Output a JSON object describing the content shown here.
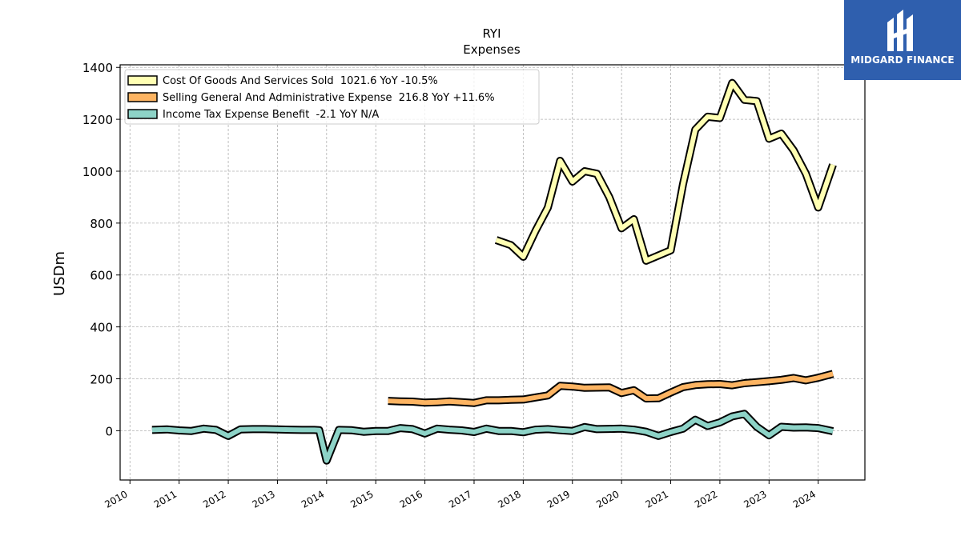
{
  "chart_data": {
    "type": "line",
    "title": "RYI",
    "subtitle": "Expenses",
    "ylabel": "USDm",
    "xlabel": "",
    "ylim": [
      -190,
      1410
    ],
    "xlim": [
      2009.8,
      2024.95
    ],
    "yticks": [
      0,
      200,
      400,
      600,
      800,
      1000,
      1200,
      1400
    ],
    "xticks": [
      2010,
      2011,
      2012,
      2013,
      2014,
      2015,
      2016,
      2017,
      2018,
      2019,
      2020,
      2021,
      2022,
      2023,
      2024
    ],
    "grid": true,
    "legend_position": "top-left",
    "series": [
      {
        "name": "Cost Of Goods And Services Sold",
        "legend": "Cost Of Goods And Services Sold  1021.6 YoY -10.5%",
        "color": "#ffffb3",
        "points": [
          [
            2017.45,
            735
          ],
          [
            2017.75,
            715
          ],
          [
            2018.0,
            670
          ],
          [
            2018.25,
            770
          ],
          [
            2018.5,
            860
          ],
          [
            2018.75,
            1040
          ],
          [
            2019.0,
            960
          ],
          [
            2019.25,
            1000
          ],
          [
            2019.5,
            990
          ],
          [
            2019.75,
            900
          ],
          [
            2020.0,
            780
          ],
          [
            2020.25,
            815
          ],
          [
            2020.5,
            655
          ],
          [
            2020.75,
            675
          ],
          [
            2021.0,
            695
          ],
          [
            2021.25,
            950
          ],
          [
            2021.5,
            1160
          ],
          [
            2021.75,
            1210
          ],
          [
            2022.0,
            1205
          ],
          [
            2022.25,
            1340
          ],
          [
            2022.5,
            1275
          ],
          [
            2022.75,
            1270
          ],
          [
            2023.0,
            1125
          ],
          [
            2023.25,
            1145
          ],
          [
            2023.5,
            1080
          ],
          [
            2023.75,
            990
          ],
          [
            2024.0,
            860
          ],
          [
            2024.3,
            1025
          ]
        ]
      },
      {
        "name": "Selling General And Administrative Expense",
        "legend": "Selling General And Administrative Expense  216.8 YoY +11.6%",
        "color": "#fdb462",
        "points": [
          [
            2015.25,
            115
          ],
          [
            2015.5,
            113
          ],
          [
            2015.75,
            112
          ],
          [
            2016.0,
            108
          ],
          [
            2016.25,
            110
          ],
          [
            2016.5,
            113
          ],
          [
            2016.75,
            110
          ],
          [
            2017.0,
            107
          ],
          [
            2017.25,
            117
          ],
          [
            2017.5,
            117
          ],
          [
            2017.75,
            119
          ],
          [
            2018.0,
            120
          ],
          [
            2018.25,
            128
          ],
          [
            2018.5,
            136
          ],
          [
            2018.75,
            173
          ],
          [
            2019.0,
            170
          ],
          [
            2019.25,
            165
          ],
          [
            2019.5,
            166
          ],
          [
            2019.75,
            167
          ],
          [
            2020.0,
            145
          ],
          [
            2020.25,
            156
          ],
          [
            2020.5,
            124
          ],
          [
            2020.75,
            125
          ],
          [
            2021.0,
            147
          ],
          [
            2021.25,
            168
          ],
          [
            2021.5,
            176
          ],
          [
            2021.75,
            179
          ],
          [
            2022.0,
            180
          ],
          [
            2022.25,
            175
          ],
          [
            2022.5,
            183
          ],
          [
            2022.75,
            187
          ],
          [
            2023.0,
            191
          ],
          [
            2023.25,
            196
          ],
          [
            2023.5,
            203
          ],
          [
            2023.75,
            194
          ],
          [
            2024.0,
            204
          ],
          [
            2024.3,
            219
          ]
        ]
      },
      {
        "name": "Income Tax Expense Benefit",
        "legend": "Income Tax Expense Benefit  -2.1 YoY N/A",
        "color": "#8dd3c7",
        "points": [
          [
            2010.45,
            3
          ],
          [
            2010.75,
            5
          ],
          [
            2011.0,
            1
          ],
          [
            2011.25,
            -1
          ],
          [
            2011.5,
            8
          ],
          [
            2011.75,
            3
          ],
          [
            2012.0,
            -20
          ],
          [
            2012.25,
            5
          ],
          [
            2012.5,
            6
          ],
          [
            2012.75,
            6
          ],
          [
            2013.0,
            5
          ],
          [
            2013.25,
            4
          ],
          [
            2013.5,
            3
          ],
          [
            2013.75,
            3
          ],
          [
            2013.85,
            2
          ],
          [
            2014.0,
            -115
          ],
          [
            2014.25,
            3
          ],
          [
            2014.5,
            2
          ],
          [
            2014.75,
            -4
          ],
          [
            2015.0,
            -1
          ],
          [
            2015.25,
            -1
          ],
          [
            2015.5,
            10
          ],
          [
            2015.75,
            6
          ],
          [
            2016.0,
            -11
          ],
          [
            2016.25,
            8
          ],
          [
            2016.5,
            4
          ],
          [
            2016.75,
            1
          ],
          [
            2017.0,
            -5
          ],
          [
            2017.25,
            8
          ],
          [
            2017.5,
            -1
          ],
          [
            2017.75,
            -1
          ],
          [
            2018.0,
            -6
          ],
          [
            2018.25,
            4
          ],
          [
            2018.5,
            6
          ],
          [
            2018.75,
            2
          ],
          [
            2019.0,
            -1
          ],
          [
            2019.25,
            14
          ],
          [
            2019.5,
            6
          ],
          [
            2019.75,
            7
          ],
          [
            2020.0,
            8
          ],
          [
            2020.25,
            4
          ],
          [
            2020.5,
            -4
          ],
          [
            2020.75,
            -20
          ],
          [
            2021.0,
            -5
          ],
          [
            2021.25,
            8
          ],
          [
            2021.5,
            42
          ],
          [
            2021.75,
            18
          ],
          [
            2022.0,
            32
          ],
          [
            2022.25,
            55
          ],
          [
            2022.5,
            65
          ],
          [
            2022.75,
            15
          ],
          [
            2023.0,
            -18
          ],
          [
            2023.25,
            15
          ],
          [
            2023.5,
            12
          ],
          [
            2023.75,
            13
          ],
          [
            2024.0,
            10
          ],
          [
            2024.3,
            -2
          ]
        ]
      }
    ]
  },
  "logo": {
    "text": "MIDGARD FINANCE"
  }
}
